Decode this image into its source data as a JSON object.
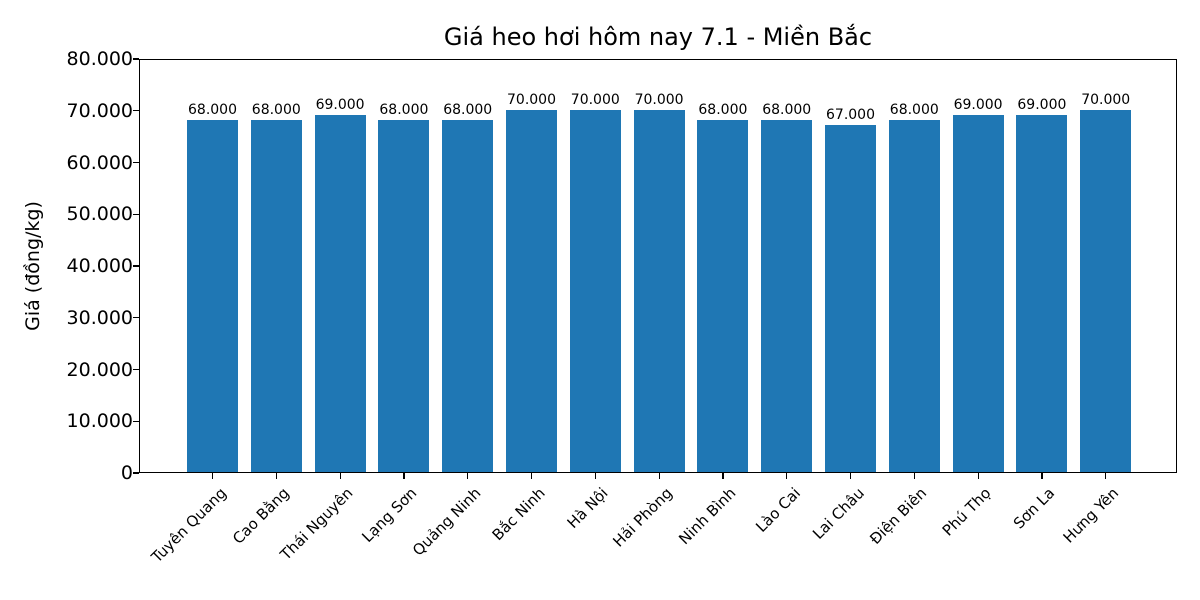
{
  "chart_data": {
    "type": "bar",
    "title": "Giá heo hơi hôm nay 7.1 - Miền Bắc",
    "xlabel": "",
    "ylabel": "Giá (đồng/kg)",
    "ylim": [
      0,
      80000
    ],
    "yticks": [
      0,
      10000,
      20000,
      30000,
      40000,
      50000,
      60000,
      70000,
      80000
    ],
    "ytick_labels": [
      "0",
      "10.000",
      "20.000",
      "30.000",
      "40.000",
      "50.000",
      "60.000",
      "70.000",
      "80.000"
    ],
    "categories": [
      "Tuyên Quang",
      "Cao Bằng",
      "Thái Nguyên",
      "Lạng Sơn",
      "Quảng Ninh",
      "Bắc Ninh",
      "Hà Nội",
      "Hải Phòng",
      "Ninh Bình",
      "Lào Cai",
      "Lai Châu",
      "Điện Biên",
      "Phú Thọ",
      "Sơn La",
      "Hưng Yên"
    ],
    "values": [
      68000,
      68000,
      69000,
      68000,
      68000,
      70000,
      70000,
      70000,
      68000,
      68000,
      67000,
      68000,
      69000,
      69000,
      70000
    ],
    "value_labels": [
      "68.000",
      "68.000",
      "69.000",
      "68.000",
      "68.000",
      "70.000",
      "70.000",
      "70.000",
      "68.000",
      "68.000",
      "67.000",
      "68.000",
      "69.000",
      "69.000",
      "70.000"
    ],
    "bar_color": "#1f77b4",
    "grid": false,
    "legend": null
  }
}
